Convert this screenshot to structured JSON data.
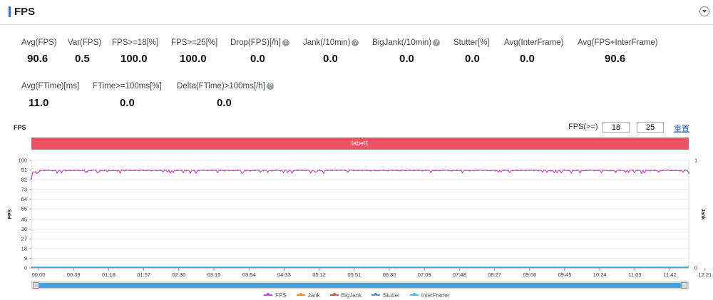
{
  "header": {
    "title": "FPS"
  },
  "metrics_row1": [
    {
      "label": "Avg(FPS)",
      "value": "90.6",
      "help": false
    },
    {
      "label": "Var(FPS)",
      "value": "0.5",
      "help": false
    },
    {
      "label": "FPS>=18[%]",
      "value": "100.0",
      "help": false
    },
    {
      "label": "FPS>=25[%]",
      "value": "100.0",
      "help": false
    },
    {
      "label": "Drop(FPS)[/h]",
      "value": "0.0",
      "help": true
    },
    {
      "label": "Jank(/10min)",
      "value": "0.0",
      "help": true
    },
    {
      "label": "BigJank(/10min)",
      "value": "0.0",
      "help": true
    },
    {
      "label": "Stutter[%]",
      "value": "0.0",
      "help": false
    },
    {
      "label": "Avg(InterFrame)",
      "value": "0.0",
      "help": false
    },
    {
      "label": "Avg(FPS+InterFrame)",
      "value": "90.6",
      "help": false
    }
  ],
  "metrics_row2": [
    {
      "label": "Avg(FTime)[ms]",
      "value": "11.0",
      "help": false
    },
    {
      "label": "FTime>=100ms[%]",
      "value": "0.0",
      "help": false
    },
    {
      "label": "Delta(FTime)>100ms[/h]",
      "value": "0.0",
      "help": true
    }
  ],
  "chart_controls": {
    "chart_title": "FPS",
    "threshold_label": "FPS(>=)",
    "threshold_low": "18",
    "threshold_high": "25",
    "reset_label": "重置",
    "label_bar": "label1"
  },
  "chart_data": {
    "type": "line",
    "ylabel": "FPS",
    "y2label": "Jank",
    "ylim": [
      0,
      100
    ],
    "yticks": [
      "0",
      "9",
      "18",
      "27",
      "36",
      "45",
      "55",
      "64",
      "73",
      "82",
      "91",
      "100"
    ],
    "y2lim": [
      0,
      1
    ],
    "y2ticks": [
      "0",
      "1"
    ],
    "xticks": [
      "00:00",
      "00:39",
      "01:18",
      "01:57",
      "02:36",
      "03:15",
      "03:54",
      "04:33",
      "05:12",
      "05:51",
      "06:30",
      "07:09",
      "07:48",
      "08:27",
      "09:06",
      "09:45",
      "10:24",
      "11:03",
      "11:42",
      "12:21"
    ],
    "x_range_seconds": [
      0,
      767
    ],
    "series": [
      {
        "name": "FPS",
        "color": "#c04fc0",
        "typical_value": 90.6,
        "min_value": 88,
        "max_value": 91
      },
      {
        "name": "Jank",
        "color": "#f08a30",
        "values_constant": 0
      },
      {
        "name": "BigJank",
        "color": "#c0604a",
        "values_constant": 0
      },
      {
        "name": "Stutter",
        "color": "#5b8ed8",
        "values_constant": 0
      },
      {
        "name": "InterFrame",
        "color": "#55b8e8",
        "values_constant": 0
      }
    ],
    "grid": true,
    "legend_position": "bottom"
  }
}
